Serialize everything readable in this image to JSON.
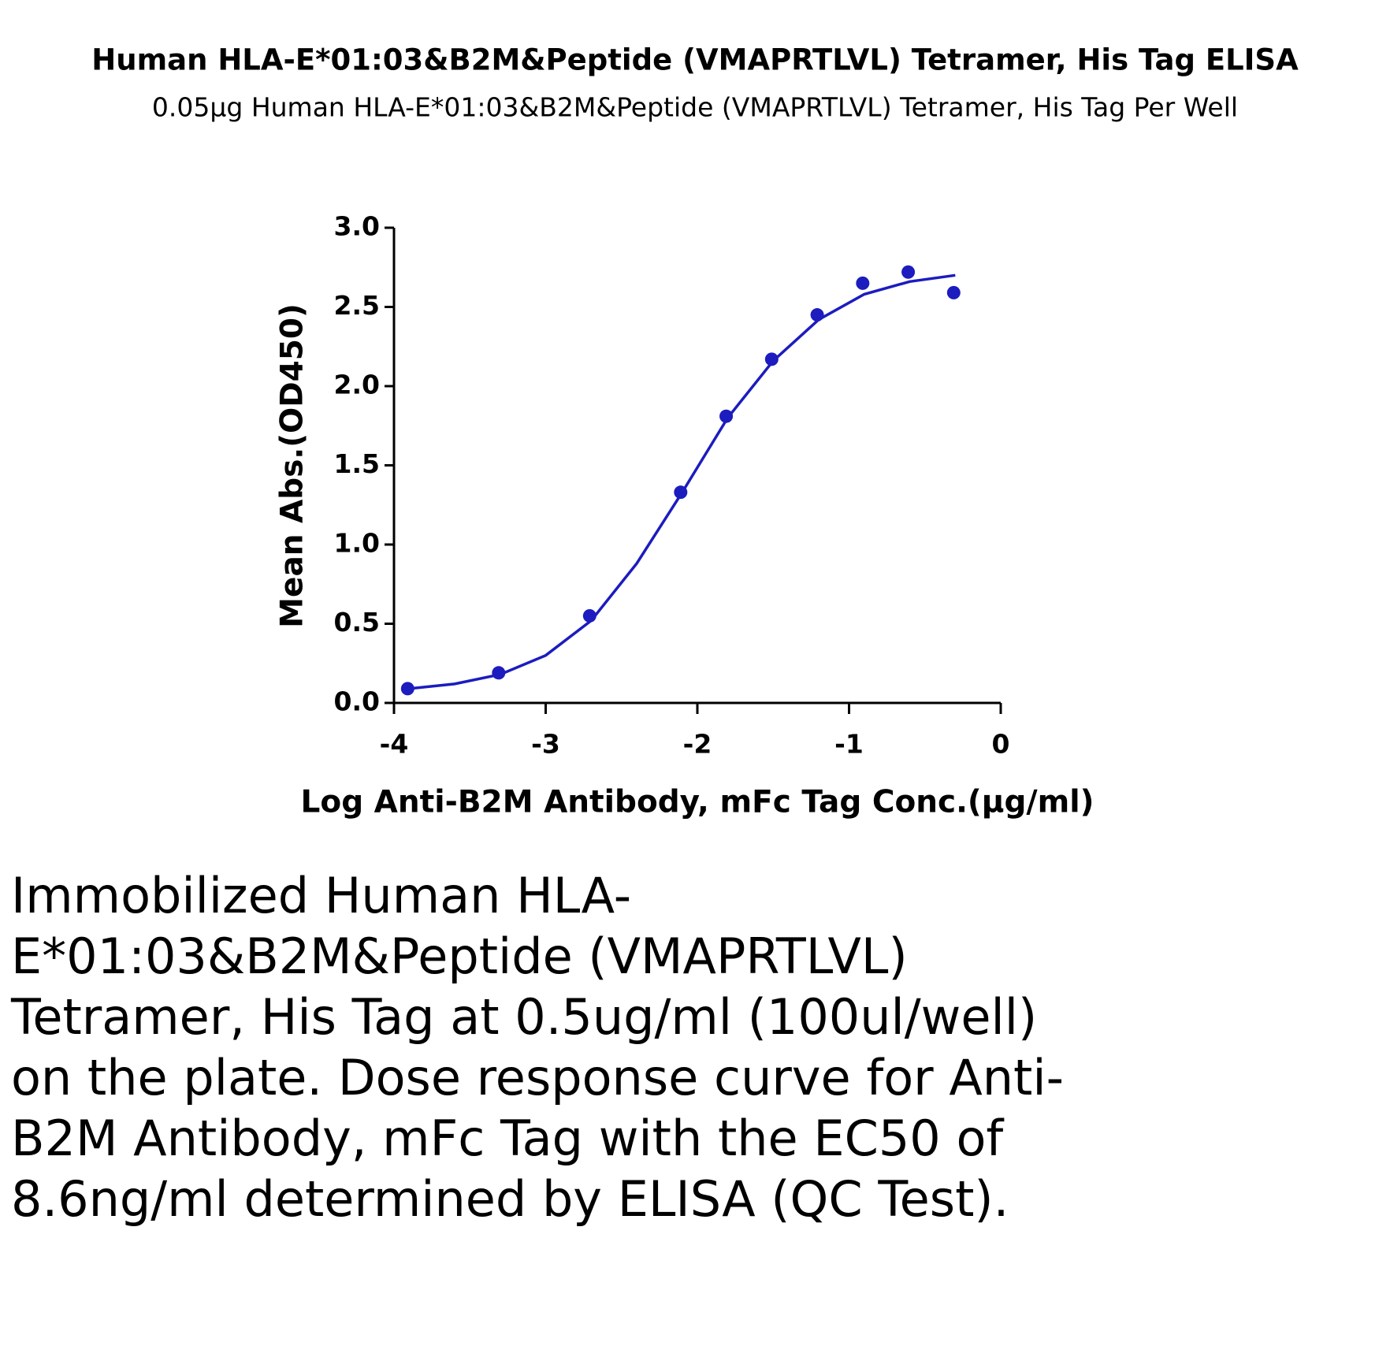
{
  "chart_data": {
    "type": "scatter",
    "title": "Human HLA-E*01:03&B2M&Peptide (VMAPRTLVL) Tetramer, His Tag ELISA",
    "subtitle": "0.05μg Human HLA-E*01:03&B2M&Peptide (VMAPRTLVL) Tetramer, His Tag Per Well",
    "x_label": "Log Anti-B2M Antibody, mFc Tag Conc.(μg/ml)",
    "y_label": "Mean Abs.(OD450)",
    "series": [
      {
        "kind": "points",
        "color": "#1c1cbf",
        "x": [
          -3.91,
          -3.31,
          -2.71,
          -2.11,
          -1.81,
          -1.51,
          -1.21,
          -0.91,
          -0.61,
          -0.31
        ],
        "values": [
          0.09,
          0.19,
          0.55,
          1.33,
          1.81,
          2.17,
          2.45,
          2.65,
          2.72,
          2.59
        ]
      },
      {
        "kind": "line",
        "color": "#1c1cbf",
        "x": [
          -3.9,
          -3.6,
          -3.3,
          -3.0,
          -2.7,
          -2.4,
          -2.1,
          -1.8,
          -1.5,
          -1.2,
          -0.9,
          -0.6,
          -0.3
        ],
        "values": [
          0.09,
          0.12,
          0.18,
          0.3,
          0.52,
          0.88,
          1.33,
          1.8,
          2.16,
          2.42,
          2.58,
          2.66,
          2.7
        ]
      }
    ],
    "xlim": [
      -4,
      0
    ],
    "xticks": [
      -4,
      -3,
      -2,
      -1,
      0
    ],
    "ylim": [
      0,
      3
    ],
    "yticks": [
      {
        "value": 0,
        "label": "0.0"
      },
      0.5,
      {
        "value": 1,
        "label": "1.0"
      },
      1.5,
      {
        "value": 2,
        "label": "2.0"
      },
      2.5,
      {
        "value": 3,
        "label": "3.0"
      }
    ]
  },
  "caption": "Immobilized Human HLA-E*01:03&B2M&Peptide (VMAPRTLVL) Tetramer, His Tag at 0.5ug/ml (100ul/well) on the plate. Dose response curve for Anti-B2M Antibody, mFc Tag with the EC50 of 8.6ng/ml determined by ELISA (QC Test)."
}
